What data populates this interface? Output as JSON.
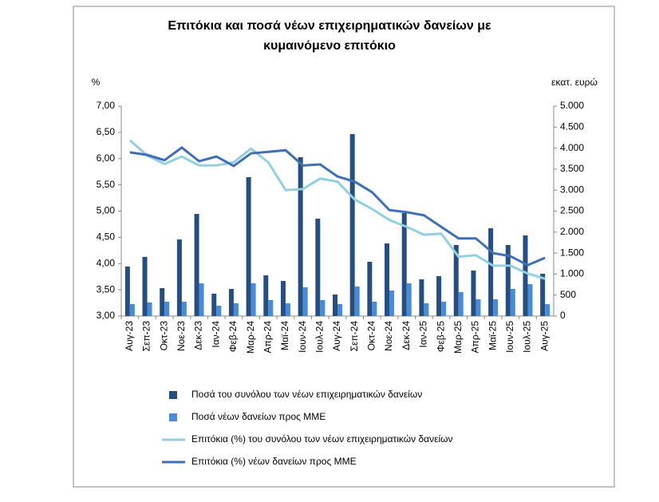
{
  "chart_data": {
    "type": "combo",
    "title": [
      "Επιτόκια και ποσά νέων επιχειρηματικών δανείων με",
      "κυμαινόμενο επιτόκιο"
    ],
    "y_label": "%",
    "y2_label": "εκατ. ευρώ",
    "categories": [
      "Αυγ-23",
      "Σεπ-23",
      "Οκτ-23",
      "Νοε-23",
      "Δεκ-23",
      "Ιαν-24",
      "Φεβ-24",
      "Μαρ-24",
      "Απρ-24",
      "Μαϊ-24",
      "Ιουν-24",
      "Ιουλ-24",
      "Αυγ-24",
      "Σεπ-24",
      "Οκτ-24",
      "Νοε-24",
      "Δεκ-24",
      "Ιαν-25",
      "Φεβ-25",
      "Μαρ-25",
      "Απρ-25",
      "Μαϊ-25",
      "Ιουν-25",
      "Ιουλ-25",
      "Αυγ-25"
    ],
    "series": [
      {
        "name": "Ποσά του συνόλου των νέων επιχειρηματικών δανείων",
        "type": "bar",
        "axis": "y2",
        "color": "#264f80",
        "values": [
          1180,
          1410,
          665,
          1825,
          2433,
          532,
          646,
          3308,
          970,
          837,
          3783,
          2319,
          513,
          4335,
          1293,
          1730,
          2452,
          875,
          950,
          1692,
          1084,
          2091,
          1692,
          1920,
          1008
        ]
      },
      {
        "name": "Ποσά νέων δανείων προς ΜΜΕ",
        "type": "bar",
        "axis": "y2",
        "color": "#4a8bd8",
        "values": [
          285,
          323,
          342,
          342,
          779,
          247,
          304,
          779,
          380,
          304,
          684,
          380,
          285,
          703,
          342,
          608,
          779,
          304,
          342,
          570,
          399,
          399,
          646,
          760,
          285
        ]
      },
      {
        "name": "Επιτόκια (%) του συνόλου των νέων επιχειρηματικών δανείων",
        "type": "line",
        "axis": "y",
        "color": "#93cfe2",
        "values": [
          6.35,
          6.06,
          5.9,
          6.04,
          5.87,
          5.87,
          5.93,
          6.19,
          5.93,
          5.4,
          5.42,
          5.62,
          5.56,
          5.22,
          5.04,
          4.83,
          4.7,
          4.55,
          4.57,
          4.13,
          4.16,
          3.96,
          3.96,
          3.81,
          3.71
        ]
      },
      {
        "name": "Επιτόκια (%) νέων δανείων προς ΜΜΕ",
        "type": "line",
        "axis": "y",
        "color": "#3f6fb6",
        "values": [
          6.12,
          6.07,
          5.97,
          6.21,
          5.95,
          6.04,
          5.86,
          6.1,
          6.13,
          6.16,
          5.87,
          5.89,
          5.66,
          5.56,
          5.36,
          5.02,
          4.98,
          4.92,
          4.7,
          4.48,
          4.48,
          4.2,
          4.14,
          3.97,
          4.11
        ]
      }
    ],
    "ylim": [
      3,
      7
    ],
    "yticks": [
      {
        "value": 3,
        "label": "3,00"
      },
      {
        "value": 3.5,
        "label": "3,50"
      },
      {
        "value": 4,
        "label": "4,00"
      },
      {
        "value": 4.5,
        "label": "4,50"
      },
      {
        "value": 5,
        "label": "5,00"
      },
      {
        "value": 5.5,
        "label": "5,50"
      },
      {
        "value": 6,
        "label": "6,00"
      },
      {
        "value": 6.5,
        "label": "6,50"
      },
      {
        "value": 7,
        "label": "7,00"
      }
    ],
    "y2lim": [
      0,
      5000
    ],
    "y2ticks": [
      0,
      {
        "value": 500,
        "label": "500"
      },
      {
        "value": 1000,
        "label": "1.000"
      },
      {
        "value": 1500,
        "label": "1.500"
      },
      {
        "value": 2000,
        "label": "2.000"
      },
      {
        "value": 2500,
        "label": "2.500"
      },
      {
        "value": 3000,
        "label": "3.000"
      },
      {
        "value": 3500,
        "label": "3.500"
      },
      {
        "value": 4000,
        "label": "4.000"
      },
      {
        "value": 4500,
        "label": "4.500"
      },
      {
        "value": 5000,
        "label": "5.000"
      }
    ],
    "grid": false,
    "legend": "bottom"
  }
}
